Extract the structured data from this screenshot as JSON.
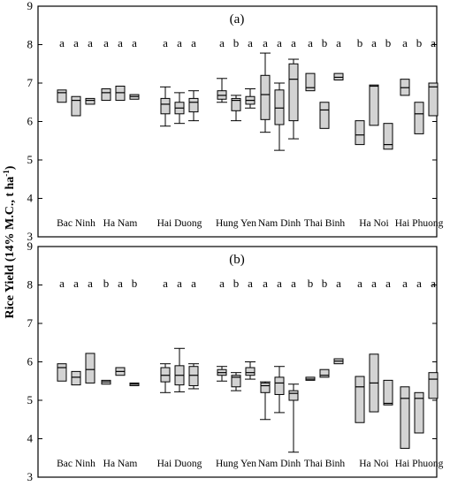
{
  "ylabel": "Rice Yield (14% M.C., t ha",
  "ylabel_sup": "-1",
  "chart_data": [
    {
      "type": "box",
      "panel_label": "(a)",
      "ylim": [
        3,
        9
      ],
      "yticks": [
        "3",
        "4",
        "5",
        "6",
        "7",
        "8",
        "9"
      ],
      "categories": [
        "Bac Ninh",
        "Ha Nam",
        "Hai Duong",
        "Hung Yen",
        "Nam Dinh",
        "Thai Binh",
        "Ha Noi",
        "Hai Phuong"
      ],
      "groups": [
        {
          "letters": [
            "a",
            "a",
            "a"
          ],
          "boxes": [
            {
              "q1": 6.5,
              "median": 6.75,
              "q3": 6.82
            },
            {
              "q1": 6.15,
              "median": 6.55,
              "q3": 6.65
            },
            {
              "q1": 6.45,
              "median": 6.55,
              "q3": 6.6
            }
          ]
        },
        {
          "letters": [
            "a",
            "a",
            "a"
          ],
          "boxes": [
            {
              "q1": 6.55,
              "median": 6.75,
              "q3": 6.85
            },
            {
              "q1": 6.55,
              "median": 6.75,
              "q3": 6.92
            },
            {
              "q1": 6.58,
              "median": 6.65,
              "q3": 6.7
            }
          ]
        },
        {
          "letters": [
            "a",
            "a",
            "a"
          ],
          "boxes": [
            {
              "q1": 6.2,
              "median": 6.45,
              "q3": 6.6,
              "min": 5.88,
              "max": 6.9
            },
            {
              "q1": 6.2,
              "median": 6.35,
              "q3": 6.5,
              "min": 5.95,
              "max": 6.75
            },
            {
              "q1": 6.25,
              "median": 6.5,
              "q3": 6.6,
              "min": 6.02,
              "max": 6.8
            }
          ]
        },
        {
          "letters": [
            "a",
            "b",
            "a"
          ],
          "boxes": [
            {
              "q1": 6.58,
              "median": 6.68,
              "q3": 6.8,
              "min": 6.5,
              "max": 7.12
            },
            {
              "q1": 6.28,
              "median": 6.55,
              "q3": 6.6,
              "min": 6.02,
              "max": 6.68
            },
            {
              "q1": 6.45,
              "median": 6.55,
              "q3": 6.65,
              "min": 6.35,
              "max": 6.85
            }
          ]
        },
        {
          "letters": [
            "a",
            "a",
            "a"
          ],
          "boxes": [
            {
              "q1": 6.05,
              "median": 6.7,
              "q3": 7.2,
              "min": 5.72,
              "max": 7.78
            },
            {
              "q1": 5.92,
              "median": 6.35,
              "q3": 6.82,
              "min": 5.25,
              "max": 7.0
            },
            {
              "q1": 6.02,
              "median": 7.1,
              "q3": 7.5,
              "min": 5.55,
              "max": 7.62
            }
          ]
        },
        {
          "letters": [
            "a",
            "b",
            "a"
          ],
          "boxes": [
            {
              "q1": 6.8,
              "median": 6.88,
              "q3": 7.25
            },
            {
              "q1": 5.82,
              "median": 6.3,
              "q3": 6.5
            },
            {
              "q1": 7.08,
              "median": 7.15,
              "q3": 7.25
            }
          ]
        },
        {
          "letters": [
            "b",
            "a",
            "b"
          ],
          "boxes": [
            {
              "q1": 5.4,
              "median": 5.65,
              "q3": 6.02
            },
            {
              "q1": 5.9,
              "median": 6.92,
              "q3": 6.95
            },
            {
              "q1": 5.28,
              "median": 5.4,
              "q3": 5.95
            }
          ]
        },
        {
          "letters": [
            "a",
            "b",
            "a"
          ],
          "boxes": [
            {
              "q1": 6.68,
              "median": 6.88,
              "q3": 7.1
            },
            {
              "q1": 5.68,
              "median": 6.2,
              "q3": 6.5
            },
            {
              "q1": 6.15,
              "median": 6.9,
              "q3": 7.0
            }
          ]
        }
      ]
    },
    {
      "type": "box",
      "panel_label": "(b)",
      "ylim": [
        3,
        9
      ],
      "yticks": [
        "3",
        "4",
        "5",
        "6",
        "7",
        "8",
        "9"
      ],
      "categories": [
        "Bac Ninh",
        "Ha Nam",
        "Hai Duong",
        "Hung Yen",
        "Nam Dinh",
        "Thai Binh",
        "Ha Noi",
        "Hai Phuong"
      ],
      "groups": [
        {
          "letters": [
            "a",
            "a",
            "a"
          ],
          "boxes": [
            {
              "q1": 5.5,
              "median": 5.85,
              "q3": 5.95
            },
            {
              "q1": 5.4,
              "median": 5.6,
              "q3": 5.75
            },
            {
              "q1": 5.45,
              "median": 5.8,
              "q3": 6.22
            }
          ]
        },
        {
          "letters": [
            "b",
            "a",
            "b"
          ],
          "boxes": [
            {
              "q1": 5.42,
              "median": 5.48,
              "q3": 5.52
            },
            {
              "q1": 5.65,
              "median": 5.75,
              "q3": 5.85
            },
            {
              "q1": 5.38,
              "median": 5.42,
              "q3": 5.45
            }
          ]
        },
        {
          "letters": [
            "a",
            "a",
            "a"
          ],
          "boxes": [
            {
              "q1": 5.48,
              "median": 5.65,
              "q3": 5.85,
              "min": 5.2,
              "max": 5.95
            },
            {
              "q1": 5.4,
              "median": 5.65,
              "q3": 5.9,
              "min": 5.22,
              "max": 6.35
            },
            {
              "q1": 5.38,
              "median": 5.65,
              "q3": 5.88,
              "min": 5.3,
              "max": 5.95
            }
          ]
        },
        {
          "letters": [
            "a",
            "b",
            "a"
          ],
          "boxes": [
            {
              "q1": 5.65,
              "median": 5.72,
              "q3": 5.8,
              "min": 5.5,
              "max": 5.88
            },
            {
              "q1": 5.35,
              "median": 5.6,
              "q3": 5.65,
              "min": 5.25,
              "max": 5.72
            },
            {
              "q1": 5.65,
              "median": 5.72,
              "q3": 5.85,
              "min": 5.55,
              "max": 6.0
            }
          ]
        },
        {
          "letters": [
            "a",
            "a",
            "a"
          ],
          "boxes": [
            {
              "q1": 5.2,
              "median": 5.38,
              "q3": 5.45,
              "min": 4.5,
              "max": 5.48
            },
            {
              "q1": 5.15,
              "median": 5.45,
              "q3": 5.6,
              "min": 4.68,
              "max": 5.88
            },
            {
              "q1": 5.0,
              "median": 5.18,
              "q3": 5.25,
              "min": 3.65,
              "max": 5.42
            }
          ]
        },
        {
          "letters": [
            "b",
            "b",
            "a"
          ],
          "boxes": [
            {
              "q1": 5.52,
              "median": 5.55,
              "q3": 5.6
            },
            {
              "q1": 5.6,
              "median": 5.65,
              "q3": 5.8
            },
            {
              "q1": 5.95,
              "median": 6.02,
              "q3": 6.08
            }
          ]
        },
        {
          "letters": [
            "a",
            "a",
            "a"
          ],
          "boxes": [
            {
              "q1": 4.42,
              "median": 5.35,
              "q3": 5.62
            },
            {
              "q1": 4.7,
              "median": 5.45,
              "q3": 6.2
            },
            {
              "q1": 4.88,
              "median": 4.92,
              "q3": 5.52
            }
          ]
        },
        {
          "letters": [
            "a",
            "a",
            "a"
          ],
          "boxes": [
            {
              "q1": 3.75,
              "median": 5.05,
              "q3": 5.35
            },
            {
              "q1": 4.15,
              "median": 5.05,
              "q3": 5.2
            },
            {
              "q1": 5.05,
              "median": 5.55,
              "q3": 5.72
            }
          ]
        }
      ]
    }
  ]
}
